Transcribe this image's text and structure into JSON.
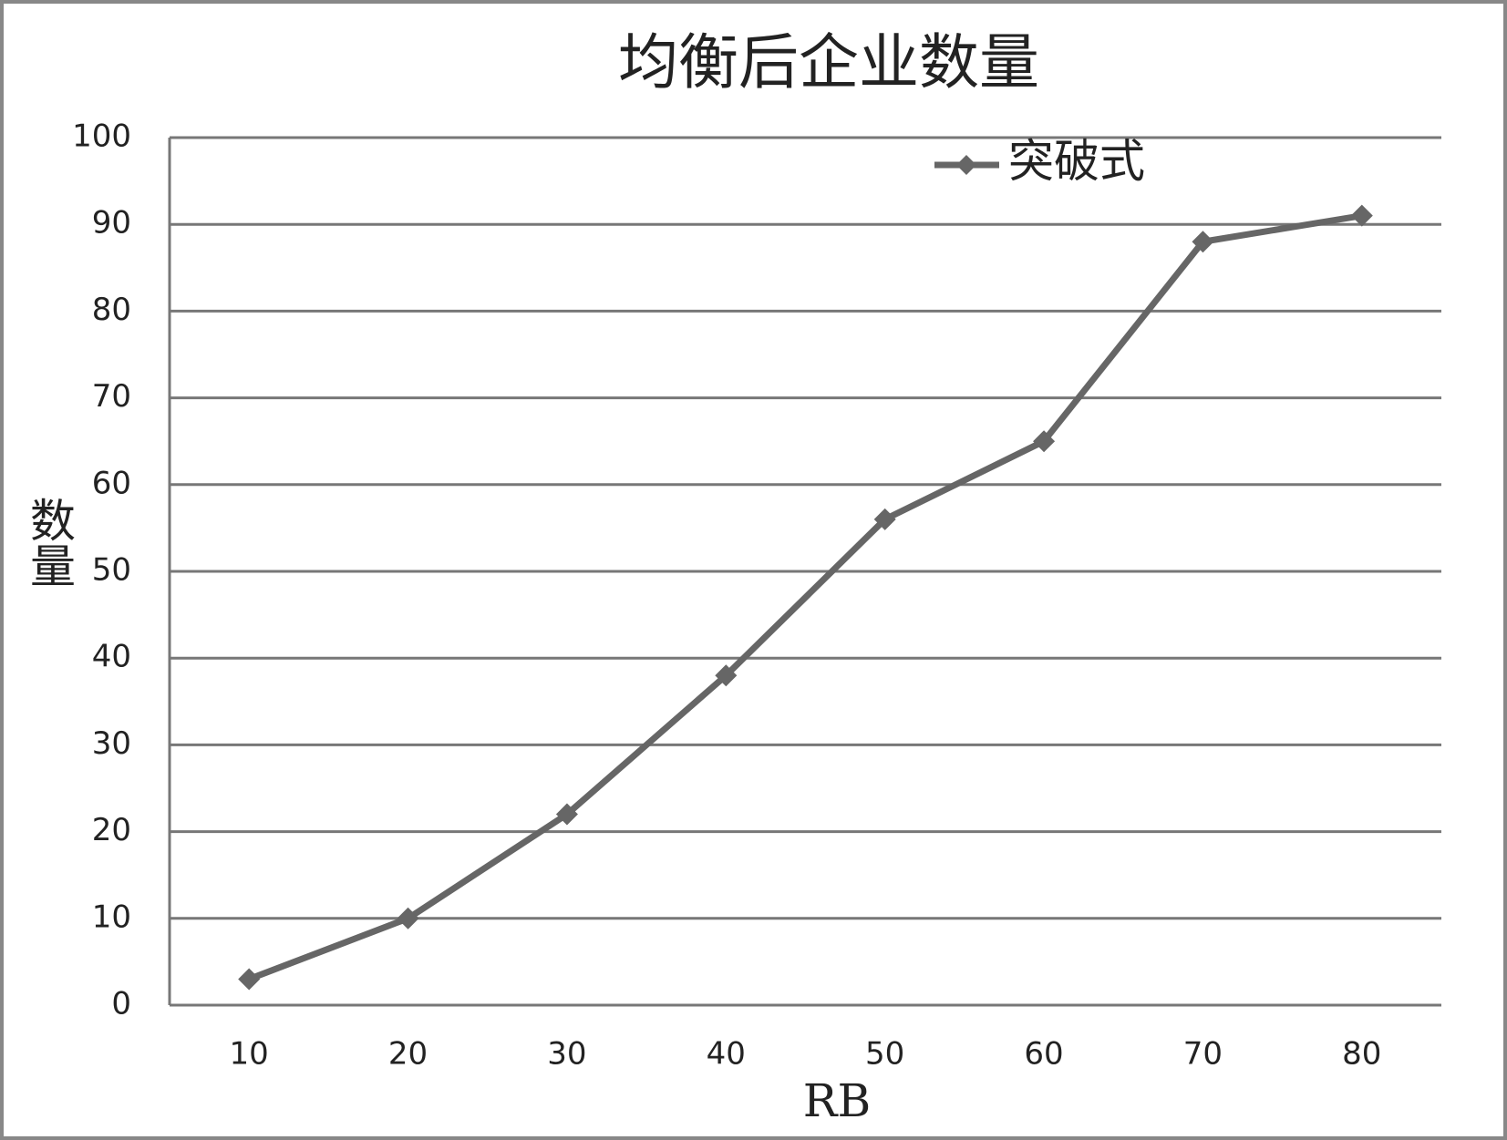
{
  "chart_data": {
    "type": "line",
    "title": "均衡后企业数量",
    "x_label": "RB",
    "y_label": "数量",
    "categories": [
      10,
      20,
      30,
      40,
      50,
      60,
      70,
      80
    ],
    "series": [
      {
        "name": "突破式",
        "color": "#666666",
        "values": [
          3,
          10,
          22,
          38,
          56,
          65,
          88,
          91
        ]
      }
    ],
    "ylim": [
      0,
      100
    ],
    "yticks": [
      0,
      10,
      20,
      30,
      40,
      50,
      60,
      70,
      80,
      90,
      100
    ],
    "grid": true,
    "legend": "top-right"
  }
}
